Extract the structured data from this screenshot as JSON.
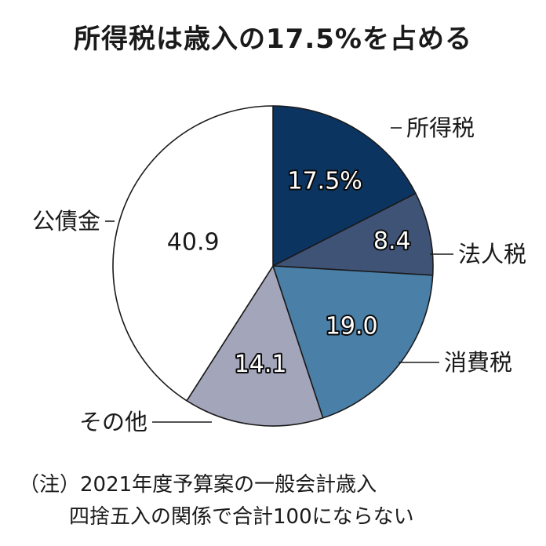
{
  "title": "所得税は歳入の17.5%を占める",
  "chart_data": {
    "type": "pie",
    "title": "所得税は歳入の17.5%を占める",
    "start_angle_deg": 0,
    "direction": "clockwise",
    "slices": [
      {
        "label": "所得税",
        "value": 17.5,
        "display": "17.5%",
        "color": "#0c3461",
        "text_color": "#ffffff",
        "outlined": true
      },
      {
        "label": "法人税",
        "value": 8.4,
        "display": "8.4",
        "color": "#3f5377",
        "text_color": "#ffffff",
        "outlined": true
      },
      {
        "label": "消費税",
        "value": 19.0,
        "display": "19.0",
        "color": "#4a7fa8",
        "text_color": "#ffffff",
        "outlined": true
      },
      {
        "label": "その他",
        "value": 14.1,
        "display": "14.1",
        "color": "#a3a5bb",
        "text_color": "#ffffff",
        "outlined": true
      },
      {
        "label": "公債金",
        "value": 40.9,
        "display": "40.9",
        "color": "#ffffff",
        "text_color": "#1a1a1a",
        "outlined": false
      }
    ],
    "legend": "callout-labels"
  },
  "notes": {
    "line1": "（注）2021年度予算案の一般会計歳入",
    "line2": "四捨五入の関係で合計100にならない"
  }
}
